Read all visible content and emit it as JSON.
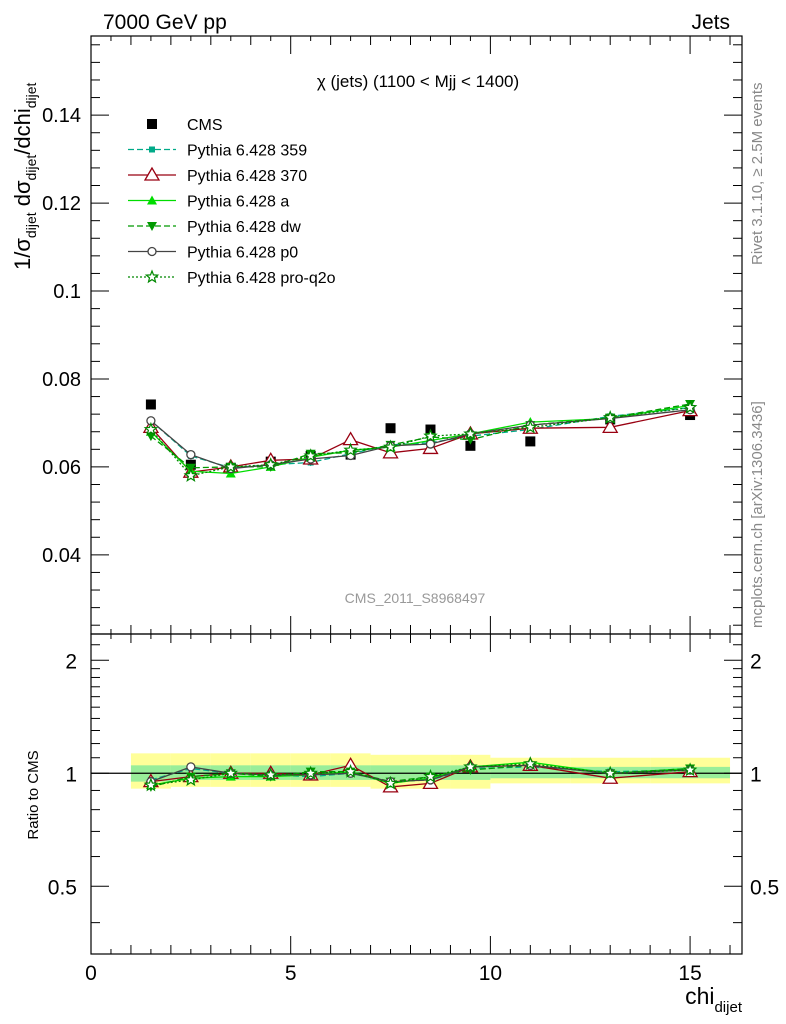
{
  "header": {
    "left": "7000 GeV pp",
    "right": "Jets"
  },
  "side_labels": {
    "rivet": "Rivet 3.1.10, ≥ 2.5M events",
    "mcplots": "mcplots.cern.ch [arXiv:1306.3436]"
  },
  "watermark": "CMS_2011_S8968497",
  "colors": {
    "cms": "#000000",
    "p359": "#00aa88",
    "p370": "#990011",
    "pa": "#00dd00",
    "pdw": "#009900",
    "pp0": "#444444",
    "pq2o": "#008800",
    "band_inner": "#99ee99",
    "band_outer": "#ffff99"
  },
  "chart_data": [
    {
      "type": "line",
      "title": "χ (jets) (1100 < Mjj < 1400)",
      "ylabel": "1/σ_dijet dσ_dijet/dchi_dijet",
      "ylabel_parts": {
        "pre": "1/σ",
        "sub1": "dijet",
        "mid": " dσ",
        "sub2": "dijet",
        "post": "/dchi",
        "sub3": "dijet"
      },
      "xlim": [
        0,
        16.3
      ],
      "ylim": [
        0.022,
        0.158
      ],
      "yticks": [
        0.04,
        0.06,
        0.08,
        0.1,
        0.12,
        0.14
      ],
      "ytick_labels": [
        "0.04",
        "0.06",
        "0.08",
        "0.1",
        "0.12",
        "0.14"
      ],
      "x": [
        1.5,
        2.5,
        3.5,
        4.5,
        5.5,
        6.5,
        7.5,
        8.5,
        9.5,
        11,
        13,
        15
      ],
      "series": [
        {
          "key": "cms",
          "name": "CMS",
          "marker": "square",
          "dash": "none",
          "values": [
            0.0742,
            0.0605,
            0.0598,
            0.0612,
            0.0625,
            0.0628,
            0.0688,
            0.0685,
            0.0648,
            0.0658,
            0.0708,
            0.0718
          ]
        },
        {
          "key": "p359",
          "name": "Pythia 6.428 359",
          "marker": "smallsquare",
          "dash": "6,3",
          "values": [
            0.0705,
            0.0625,
            0.0598,
            0.0605,
            0.061,
            0.063,
            0.065,
            0.0655,
            0.067,
            0.0685,
            0.0715,
            0.0735
          ]
        },
        {
          "key": "p370",
          "name": "Pythia 6.428 370",
          "marker": "opentriangle",
          "dash": "none",
          "values": [
            0.069,
            0.0588,
            0.06,
            0.0615,
            0.0618,
            0.0662,
            0.0632,
            0.0642,
            0.0675,
            0.0688,
            0.069,
            0.0728
          ]
        },
        {
          "key": "pa",
          "name": "Pythia 6.428 a",
          "marker": "triangle",
          "dash": "none",
          "values": [
            0.068,
            0.059,
            0.0585,
            0.06,
            0.0622,
            0.0638,
            0.0645,
            0.066,
            0.0675,
            0.0702,
            0.071,
            0.074
          ]
        },
        {
          "key": "pdw",
          "name": "Pythia 6.428 dw",
          "marker": "downtriangle",
          "dash": "6,3",
          "values": [
            0.067,
            0.0598,
            0.06,
            0.06,
            0.063,
            0.0632,
            0.065,
            0.0668,
            0.0662,
            0.0695,
            0.0712,
            0.0743
          ]
        },
        {
          "key": "pp0",
          "name": "Pythia 6.428 p0",
          "marker": "opencircle",
          "dash": "none",
          "values": [
            0.0705,
            0.0628,
            0.0596,
            0.0605,
            0.0618,
            0.0626,
            0.0648,
            0.0652,
            0.0675,
            0.0695,
            0.071,
            0.073
          ]
        },
        {
          "key": "pq2o",
          "name": "Pythia 6.428 pro-q2o",
          "marker": "star",
          "dash": "2,2",
          "values": [
            0.0685,
            0.058,
            0.06,
            0.0605,
            0.0625,
            0.0638,
            0.0645,
            0.067,
            0.0675,
            0.069,
            0.0712,
            0.0735
          ]
        }
      ]
    },
    {
      "type": "line",
      "title": "",
      "ylabel": "Ratio to CMS",
      "xlabel": "chi_dijet",
      "xlabel_parts": {
        "main": "chi",
        "sub": "dijet"
      },
      "xlim": [
        0,
        16.3
      ],
      "ylim": [
        0.33,
        2.35
      ],
      "yticks": [
        0.5,
        1,
        2
      ],
      "ytick_labels": [
        "0.5",
        "1",
        "2"
      ],
      "xticks": [
        0,
        5,
        10,
        15
      ],
      "xtick_labels": [
        "0",
        "5",
        "10",
        "15"
      ],
      "band_edges": [
        1,
        2,
        3,
        4,
        5,
        6,
        7,
        8,
        9,
        10,
        12,
        14,
        16
      ],
      "band_inner": [
        [
          0.95,
          1.05
        ],
        [
          0.96,
          1.05
        ],
        [
          0.96,
          1.05
        ],
        [
          0.96,
          1.05
        ],
        [
          0.96,
          1.05
        ],
        [
          0.96,
          1.05
        ],
        [
          0.96,
          1.05
        ],
        [
          0.96,
          1.05
        ],
        [
          0.96,
          1.05
        ],
        [
          0.97,
          1.04
        ],
        [
          0.97,
          1.04
        ],
        [
          0.97,
          1.04
        ]
      ],
      "band_outer": [
        [
          0.91,
          1.13
        ],
        [
          0.92,
          1.13
        ],
        [
          0.92,
          1.13
        ],
        [
          0.92,
          1.13
        ],
        [
          0.92,
          1.13
        ],
        [
          0.92,
          1.13
        ],
        [
          0.91,
          1.12
        ],
        [
          0.91,
          1.12
        ],
        [
          0.91,
          1.12
        ],
        [
          0.94,
          1.1
        ],
        [
          0.94,
          1.1
        ],
        [
          0.94,
          1.1
        ]
      ],
      "x": [
        1.5,
        2.5,
        3.5,
        4.5,
        5.5,
        6.5,
        7.5,
        8.5,
        9.5,
        11,
        13,
        15
      ],
      "series": [
        {
          "key": "p359",
          "values": [
            0.96,
            1.03,
            1.0,
            0.99,
            0.98,
            1.0,
            0.95,
            0.96,
            1.03,
            1.04,
            1.01,
            1.02
          ]
        },
        {
          "key": "p370",
          "values": [
            0.95,
            0.98,
            1.0,
            1.0,
            0.99,
            1.05,
            0.92,
            0.94,
            1.04,
            1.05,
            0.97,
            1.01
          ]
        },
        {
          "key": "pa",
          "values": [
            0.93,
            0.97,
            0.98,
            0.98,
            0.99,
            1.01,
            0.94,
            0.97,
            1.04,
            1.07,
            1.0,
            1.03
          ]
        },
        {
          "key": "pdw",
          "values": [
            0.92,
            0.98,
            1.0,
            0.98,
            1.01,
            1.01,
            0.95,
            0.98,
            1.02,
            1.05,
            1.0,
            1.03
          ]
        },
        {
          "key": "pp0",
          "values": [
            0.95,
            1.04,
            1.0,
            0.99,
            0.99,
            1.0,
            0.95,
            0.96,
            1.04,
            1.05,
            1.0,
            1.02
          ]
        },
        {
          "key": "pq2o",
          "values": [
            0.93,
            0.96,
            1.0,
            0.99,
            1.0,
            1.01,
            0.94,
            0.98,
            1.04,
            1.06,
            1.0,
            1.02
          ]
        }
      ]
    }
  ]
}
